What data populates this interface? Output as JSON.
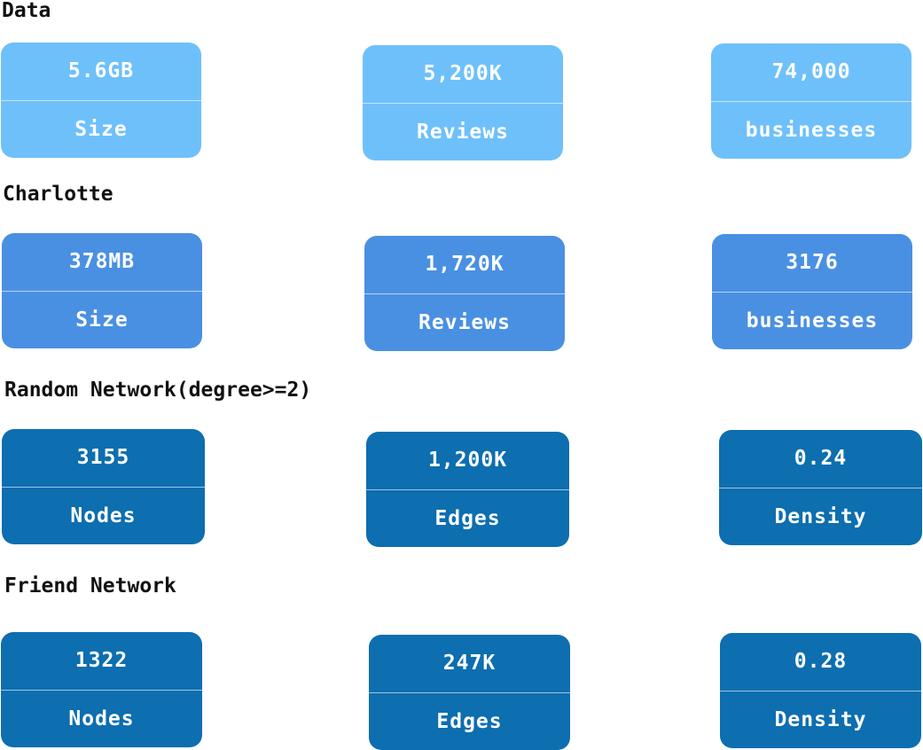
{
  "sections": [
    {
      "title": "Data",
      "cards": [
        {
          "value": "5.6GB",
          "label": "Size"
        },
        {
          "value": "5,200K",
          "label": "Reviews"
        },
        {
          "value": "74,000",
          "label": "businesses"
        }
      ]
    },
    {
      "title": "Charlotte",
      "cards": [
        {
          "value": "378MB",
          "label": "Size"
        },
        {
          "value": "1,720K",
          "label": "Reviews"
        },
        {
          "value": "3176",
          "label": "businesses"
        }
      ]
    },
    {
      "title": "Random Network(degree>=2)",
      "cards": [
        {
          "value": "3155",
          "label": "Nodes"
        },
        {
          "value": "1,200K",
          "label": "Edges"
        },
        {
          "value": "0.24",
          "label": "Density"
        }
      ]
    },
    {
      "title": "Friend Network",
      "cards": [
        {
          "value": "1322",
          "label": "Nodes"
        },
        {
          "value": "247K",
          "label": "Edges"
        },
        {
          "value": "0.28",
          "label": "Density"
        }
      ]
    }
  ],
  "colors": {
    "data": "#6ec0fb",
    "charlotte": "#4a90e2",
    "random_network": "#0d6eb0",
    "friend_network": "#0d6eb0",
    "heading": "#111111",
    "card_text": "#ffffff"
  }
}
